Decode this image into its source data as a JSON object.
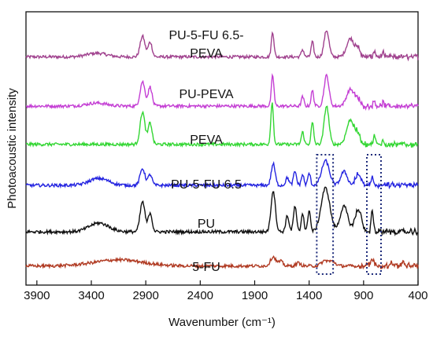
{
  "chart_data": {
    "type": "line",
    "title": "",
    "xlabel": "Wavenumber (cm⁻¹)",
    "ylabel": "Photoacoustic intensity",
    "x_reversed": true,
    "xlim": [
      4000,
      400
    ],
    "x_ticks": [
      3900,
      3400,
      2900,
      2400,
      1900,
      1400,
      900,
      400
    ],
    "y_ticks_shown": false,
    "grid": false,
    "legend": "none (series names printed next to curves)",
    "annotations": [
      {
        "type": "dotted-box",
        "x_range": [
          1330,
          1180
        ]
      },
      {
        "type": "dotted-box",
        "x_range": [
          870,
          740
        ]
      }
    ],
    "series": [
      {
        "name": "PU-5-FU 6.5-PEVA",
        "label_lines": [
          "PU-5-FU 6.5-",
          "PEVA"
        ],
        "color": "#a0428e",
        "baseline": 0.835,
        "scale": 0.135,
        "peaks": [
          [
            3350,
            0.05,
            90
          ],
          [
            2930,
            0.28,
            22
          ],
          [
            2860,
            0.2,
            18
          ],
          [
            1735,
            0.34,
            12
          ],
          [
            1460,
            0.1,
            12
          ],
          [
            1370,
            0.2,
            12
          ],
          [
            1240,
            0.36,
            22
          ],
          [
            1020,
            0.25,
            35
          ],
          [
            950,
            0.1,
            20
          ],
          [
            800,
            0.08,
            10
          ],
          [
            720,
            0.05,
            8
          ]
        ]
      },
      {
        "name": "PU-PEVA",
        "color": "#c43fd4",
        "baseline": 0.655,
        "scale": 0.14,
        "peaks": [
          [
            3350,
            0.04,
            90
          ],
          [
            2930,
            0.32,
            22
          ],
          [
            2860,
            0.25,
            18
          ],
          [
            1735,
            0.4,
            12
          ],
          [
            1460,
            0.12,
            12
          ],
          [
            1370,
            0.2,
            12
          ],
          [
            1240,
            0.4,
            22
          ],
          [
            1020,
            0.22,
            35
          ],
          [
            950,
            0.08,
            20
          ],
          [
            800,
            0.07,
            10
          ],
          [
            720,
            0.05,
            8
          ]
        ]
      },
      {
        "name": "PEVA",
        "color": "#33d633",
        "baseline": 0.515,
        "scale": 0.14,
        "peaks": [
          [
            2930,
            0.42,
            22
          ],
          [
            2860,
            0.28,
            18
          ],
          [
            1740,
            0.55,
            12
          ],
          [
            1460,
            0.16,
            12
          ],
          [
            1370,
            0.28,
            12
          ],
          [
            1240,
            0.5,
            22
          ],
          [
            1020,
            0.32,
            35
          ],
          [
            950,
            0.12,
            20
          ],
          [
            800,
            0.1,
            10
          ],
          [
            720,
            0.06,
            8
          ]
        ]
      },
      {
        "name": "PU-5-FU 6.5",
        "color": "#2424e0",
        "baseline": 0.365,
        "scale": 0.14,
        "peaks": [
          [
            3330,
            0.09,
            90
          ],
          [
            2930,
            0.22,
            22
          ],
          [
            2860,
            0.14,
            18
          ],
          [
            1730,
            0.28,
            18
          ],
          [
            1600,
            0.1,
            15
          ],
          [
            1530,
            0.18,
            14
          ],
          [
            1460,
            0.14,
            12
          ],
          [
            1400,
            0.16,
            12
          ],
          [
            1250,
            0.32,
            35
          ],
          [
            1080,
            0.18,
            30
          ],
          [
            950,
            0.14,
            25
          ],
          [
            820,
            0.12,
            10
          ]
        ]
      },
      {
        "name": "PU",
        "color": "#111111",
        "baseline": 0.195,
        "scale": 0.145,
        "peaks": [
          [
            3330,
            0.11,
            90
          ],
          [
            2930,
            0.38,
            22
          ],
          [
            2860,
            0.24,
            18
          ],
          [
            1730,
            0.52,
            20
          ],
          [
            1600,
            0.2,
            15
          ],
          [
            1530,
            0.32,
            14
          ],
          [
            1460,
            0.24,
            12
          ],
          [
            1400,
            0.28,
            12
          ],
          [
            1250,
            0.55,
            40
          ],
          [
            1080,
            0.32,
            35
          ],
          [
            950,
            0.28,
            30
          ],
          [
            820,
            0.28,
            10
          ]
        ]
      },
      {
        "name": "5-FU",
        "color": "#b03a22",
        "baseline": 0.07,
        "scale": 0.14,
        "peaks": [
          [
            3150,
            0.08,
            220
          ],
          [
            1730,
            0.12,
            25
          ],
          [
            1660,
            0.06,
            20
          ],
          [
            1500,
            0.04,
            20
          ],
          [
            1250,
            0.07,
            35
          ],
          [
            1180,
            0.05,
            25
          ],
          [
            820,
            0.07,
            20
          ],
          [
            640,
            0.05,
            15
          ],
          [
            540,
            0.06,
            12
          ]
        ]
      }
    ]
  }
}
